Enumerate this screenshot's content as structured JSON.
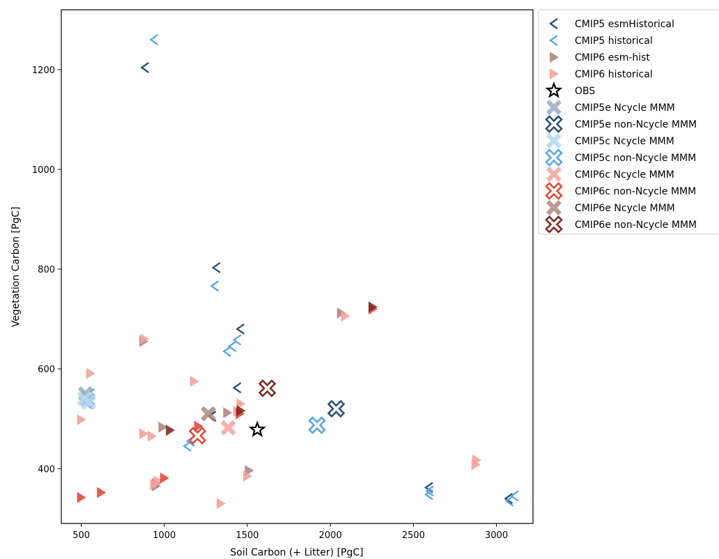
{
  "chart_data": {
    "type": "scatter",
    "title": "",
    "xlabel": "Soil Carbon (+ Litter) [PgC]",
    "ylabel": "Vegetation Carbon [PgC]",
    "xlim": [
      380,
      3220
    ],
    "ylim": [
      290,
      1320
    ],
    "xticks": [
      500,
      1000,
      1500,
      2000,
      2500,
      3000
    ],
    "yticks": [
      400,
      600,
      800,
      1000,
      1200
    ],
    "grid": false,
    "legend_position": "outside-right",
    "series": [
      {
        "name": "CMIP5 esmHistorical",
        "marker": "tri-left",
        "color": "#2a5279",
        "points": [
          [
            885,
            1204
          ],
          [
            1315,
            803
          ],
          [
            1460,
            680
          ],
          [
            1440,
            562
          ],
          [
            550,
            548
          ],
          [
            1290,
            505
          ],
          [
            2595,
            362
          ],
          [
            3075,
            340
          ]
        ]
      },
      {
        "name": "CMIP5 historical",
        "marker": "tri-left",
        "color": "#5aa6e6",
        "points": [
          [
            940,
            1260
          ],
          [
            1305,
            766
          ],
          [
            1440,
            658
          ],
          [
            1410,
            645
          ],
          [
            1380,
            635
          ],
          [
            560,
            550
          ],
          [
            545,
            530
          ],
          [
            1160,
            455
          ],
          [
            1140,
            445
          ],
          [
            2600,
            355
          ],
          [
            2595,
            348
          ],
          [
            3110,
            345
          ],
          [
            3080,
            335
          ]
        ]
      },
      {
        "name": "CMIP6 esm-hist",
        "marker": "tri-right",
        "color": "#b0867f",
        "points": [
          [
            875,
            655
          ],
          [
            2065,
            712
          ],
          [
            530,
            545
          ],
          [
            1380,
            512
          ],
          [
            1510,
            396
          ],
          [
            950,
            370
          ],
          [
            950,
            365
          ],
          [
            990,
            483
          ]
        ]
      },
      {
        "name": "CMIP6 historical",
        "marker": "tri-right",
        "color": "#f3a399",
        "points": [
          [
            880,
            660
          ],
          [
            2090,
            706
          ],
          [
            555,
            591
          ],
          [
            1180,
            575
          ],
          [
            500,
            498
          ],
          [
            875,
            470
          ],
          [
            925,
            465
          ],
          [
            1460,
            530
          ],
          [
            1440,
            515
          ],
          [
            1500,
            385
          ],
          [
            1340,
            330
          ],
          [
            2880,
            417
          ],
          [
            2875,
            408
          ],
          [
            960,
            375
          ],
          [
            940,
            368
          ]
        ]
      },
      {
        "name": "OBS",
        "marker": "star",
        "color": "#000000",
        "points": [
          [
            1560,
            478
          ]
        ]
      },
      {
        "name": "CMIP5e Ncycle MMM",
        "marker": "x-filled",
        "color": "#9aabbe",
        "points": [
          [
            525,
            550
          ],
          [
            540,
            538
          ]
        ]
      },
      {
        "name": "CMIP5e non-Ncycle MMM",
        "marker": "x-open",
        "color": "#2a5279",
        "points": [
          [
            2035,
            520
          ]
        ]
      },
      {
        "name": "CMIP5c Ncycle MMM",
        "marker": "x-filled",
        "color": "#b4d7f2",
        "points": [
          [
            520,
            540
          ],
          [
            545,
            533
          ]
        ]
      },
      {
        "name": "CMIP5c non-Ncycle MMM",
        "marker": "x-open",
        "color": "#5aa6e6",
        "points": [
          [
            1920,
            487
          ]
        ]
      },
      {
        "name": "CMIP6c Ncycle MMM",
        "marker": "x-filled",
        "color": "#f3a399",
        "points": [
          [
            1385,
            482
          ]
        ]
      },
      {
        "name": "CMIP6c non-Ncycle MMM",
        "marker": "x-open",
        "color": "#e14a3a",
        "points": [
          [
            1200,
            466
          ]
        ]
      },
      {
        "name": "CMIP6e Ncycle MMM",
        "marker": "x-filled",
        "color": "#b0867f",
        "points": [
          [
            1265,
            510
          ]
        ]
      },
      {
        "name": "CMIP6e non-Ncycle MMM",
        "marker": "x-open",
        "color": "#7a2e24",
        "points": [
          [
            1620,
            561
          ]
        ]
      },
      {
        "name": "",
        "marker": "tri-right",
        "color": "#e14a3a",
        "points": [
          [
            500,
            342
          ],
          [
            620,
            352
          ],
          [
            1000,
            381
          ],
          [
            1205,
            485
          ],
          [
            1455,
            510
          ],
          [
            2255,
            720
          ]
        ]
      },
      {
        "name": "",
        "marker": "tri-right",
        "color": "#7a2e24",
        "points": [
          [
            1035,
            477
          ],
          [
            1460,
            516
          ],
          [
            2255,
            724
          ]
        ]
      }
    ]
  }
}
